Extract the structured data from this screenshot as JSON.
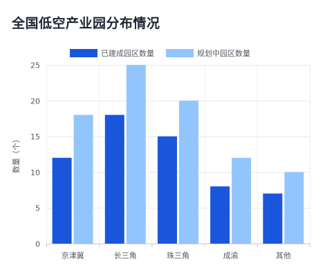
{
  "chart_data": {
    "type": "bar",
    "title": "全国低空产业园分布情况",
    "xlabel": "",
    "ylabel": "数量（个）",
    "categories": [
      "京津冀",
      "长三角",
      "珠三角",
      "成渝",
      "其他"
    ],
    "series": [
      {
        "name": "已建成园区数量",
        "values": [
          12,
          18,
          15,
          8,
          7
        ],
        "color": "#1a56db"
      },
      {
        "name": "规划中园区数量",
        "values": [
          18,
          25,
          20,
          12,
          10
        ],
        "color": "#93c5fd"
      }
    ],
    "ylim": [
      0,
      25
    ],
    "yticks": [
      0,
      5,
      10,
      15,
      20,
      25
    ],
    "grid": true,
    "legend": "top-center"
  }
}
